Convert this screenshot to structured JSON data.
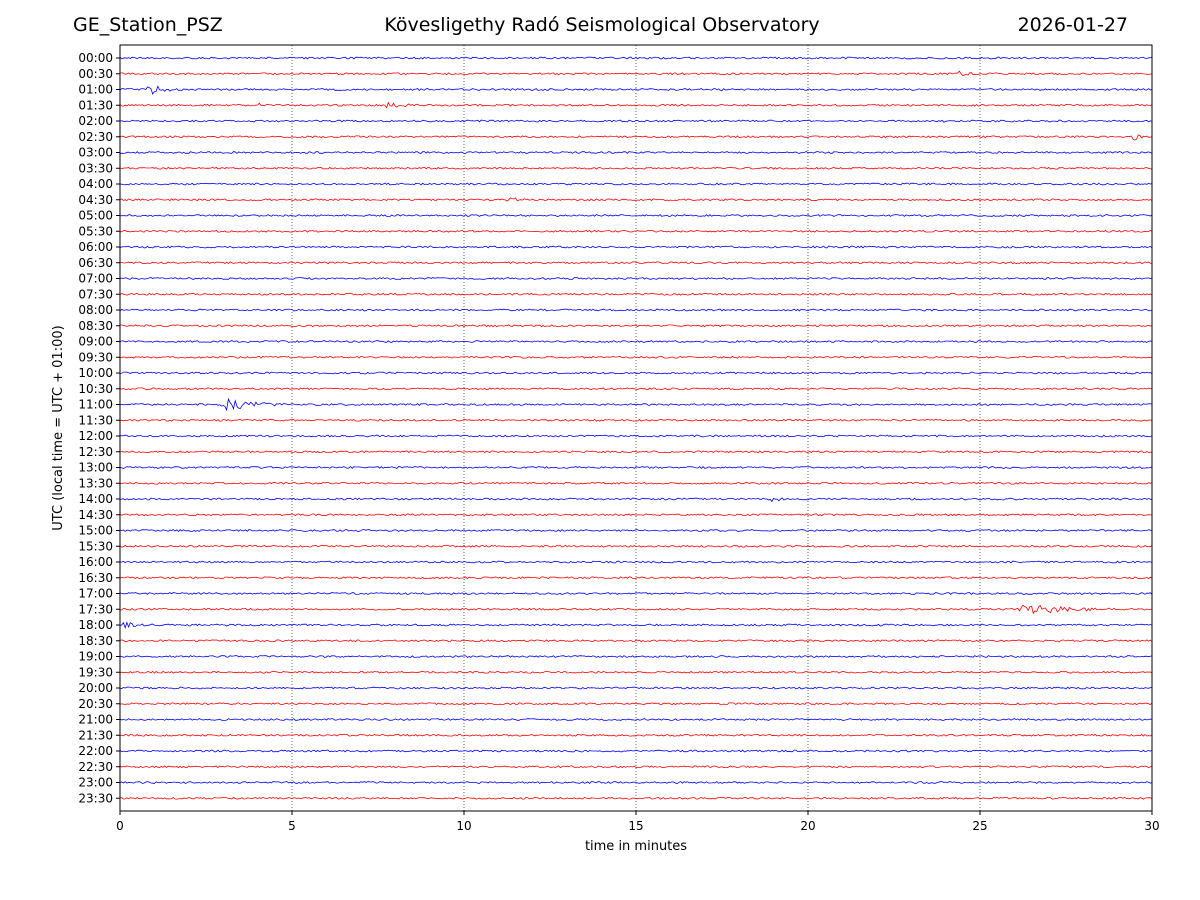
{
  "header": {
    "station": "GE_Station_PSZ",
    "observatory": "Kövesligethy Radó Seismological Observatory",
    "date": "2026-01-27"
  },
  "chart_data": {
    "type": "line",
    "title": "Kövesligethy Radó Seismological Observatory",
    "xlabel": "time in minutes",
    "ylabel": "UTC (local time = UTC + 01:00)",
    "xlim": [
      0,
      30
    ],
    "xticks": [
      0,
      5,
      10,
      15,
      20,
      25,
      30
    ],
    "grid": "vertical dotted lines at x = 5, 10, 15, 20, 25",
    "colors": {
      "even_rows": "#0000ff",
      "odd_rows": "#ff0000"
    },
    "rows": [
      "00:00",
      "00:30",
      "01:00",
      "01:30",
      "02:00",
      "02:30",
      "03:00",
      "03:30",
      "04:00",
      "04:30",
      "05:00",
      "05:30",
      "06:00",
      "06:30",
      "07:00",
      "07:30",
      "08:00",
      "08:30",
      "09:00",
      "09:30",
      "10:00",
      "10:30",
      "11:00",
      "11:30",
      "12:00",
      "12:30",
      "13:00",
      "13:30",
      "14:00",
      "14:30",
      "15:00",
      "15:30",
      "16:00",
      "16:30",
      "17:00",
      "17:30",
      "18:00",
      "18:30",
      "19:00",
      "19:30",
      "20:00",
      "20:30",
      "21:00",
      "21:30",
      "22:00",
      "22:30",
      "23:00",
      "23:30"
    ],
    "events": [
      {
        "row": 1,
        "start": 24.3,
        "end": 25.2,
        "amp": 3.5
      },
      {
        "row": 2,
        "start": 0.7,
        "end": 1.8,
        "amp": 7
      },
      {
        "row": 3,
        "start": 3.9,
        "end": 4.6,
        "amp": 4
      },
      {
        "row": 3,
        "start": 7.6,
        "end": 9.6,
        "amp": 3
      },
      {
        "row": 4,
        "start": 23.9,
        "end": 24.3,
        "amp": 3
      },
      {
        "row": 5,
        "start": 29.4,
        "end": 30,
        "amp": 4
      },
      {
        "row": 9,
        "start": 11.2,
        "end": 12.2,
        "amp": 3
      },
      {
        "row": 20,
        "start": 24.4,
        "end": 24.9,
        "amp": 2.5
      },
      {
        "row": 22,
        "start": 2.9,
        "end": 4.8,
        "amp": 7
      },
      {
        "row": 28,
        "start": 18.8,
        "end": 19.9,
        "amp": 3
      },
      {
        "row": 35,
        "start": 26.0,
        "end": 30,
        "amp": 5
      },
      {
        "row": 36,
        "start": 0,
        "end": 1.3,
        "amp": 3.5
      }
    ]
  }
}
